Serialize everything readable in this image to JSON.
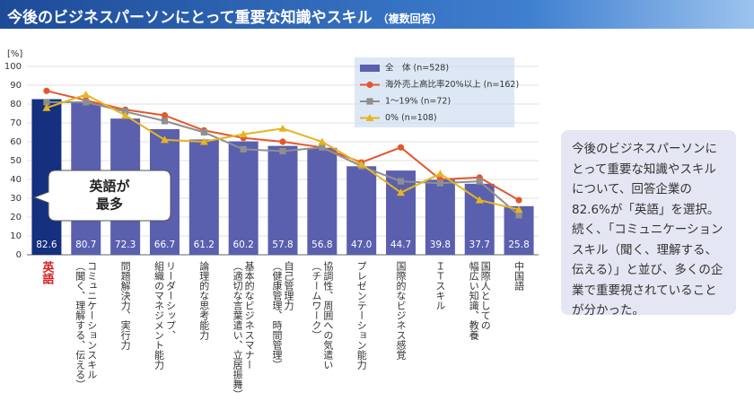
{
  "header": {
    "title": "今後のビジネスパーソンにとって重要な知識やスキル",
    "subtitle": "（複数回答）"
  },
  "chart_data": {
    "type": "combo",
    "y_unit": "[%]",
    "categories": [
      "英語",
      "コミュニケーションスキル\n（聞く、理解する、伝える）",
      "問題解決力、実行力",
      "リーダーシップ、\n組織のマネジメント能力",
      "論理的な思考能力",
      "基本的なビジネスマナー\n（適切な言葉遣い、立居振舞）",
      "自己管理力\n（健康管理、時間管理）",
      "協調性、周囲への気遣い\n（チームワーク）",
      "プレゼンテーション能力",
      "国際的なビジネス感覚",
      "ＩＴスキル",
      "国際人としての\n幅広い知識、教養",
      "中国語"
    ],
    "series": [
      {
        "name": "全　体 (n=528)",
        "type": "bar",
        "color": "#5a60ad",
        "colors": [
          "#14307e",
          "#5a60ad",
          "#5a60ad",
          "#5a60ad",
          "#5a60ad",
          "#5a60ad",
          "#5a60ad",
          "#5a60ad",
          "#5a60ad",
          "#5a60ad",
          "#5a60ad",
          "#5a60ad",
          "#5a60ad"
        ],
        "values": [
          82.6,
          80.7,
          72.3,
          66.7,
          61.2,
          60.2,
          57.8,
          56.8,
          47.0,
          44.7,
          39.8,
          37.7,
          25.8
        ],
        "value_labels": [
          "82.6",
          "80.7",
          "72.3",
          "66.7",
          "61.2",
          "60.2",
          "57.8",
          "56.8",
          "47.0",
          "44.7",
          "39.8",
          "37.7",
          "25.8"
        ]
      },
      {
        "name": "海外売上高比率20%以上 (n=162)",
        "type": "line",
        "marker": "circle",
        "color": "#e4572e",
        "values": [
          87,
          82,
          77,
          74,
          66,
          62,
          60,
          57,
          49,
          57,
          40,
          41,
          29
        ]
      },
      {
        "name": "1〜19% (n=72)",
        "type": "line",
        "marker": "square",
        "color": "#8f8f8f",
        "values": [
          81,
          81,
          76,
          71,
          65,
          56,
          55,
          57,
          47,
          39,
          38,
          39,
          21
        ]
      },
      {
        "name": "0% (n=108)",
        "type": "line",
        "marker": "triangle",
        "color": "#e6b422",
        "values": [
          78,
          85,
          74,
          61,
          60,
          64,
          67,
          60,
          48,
          33,
          43,
          29,
          24
        ]
      }
    ],
    "ylim": [
      0,
      100
    ],
    "yticks": [
      0,
      10,
      20,
      30,
      40,
      50,
      60,
      70,
      80,
      90,
      100
    ],
    "grid": true,
    "legend": "top-right",
    "annotation_lines": [
      "英語が",
      "最多"
    ]
  },
  "side_note": "今後のビジネスパーソンにとって重要な知識やスキルについて、回答企業の82.6%が「英語」を選択。続く、「コミュニケーションスキル（聞く、理解する、伝える）」と並び、多くの企業で重要視されていることが分かった。"
}
